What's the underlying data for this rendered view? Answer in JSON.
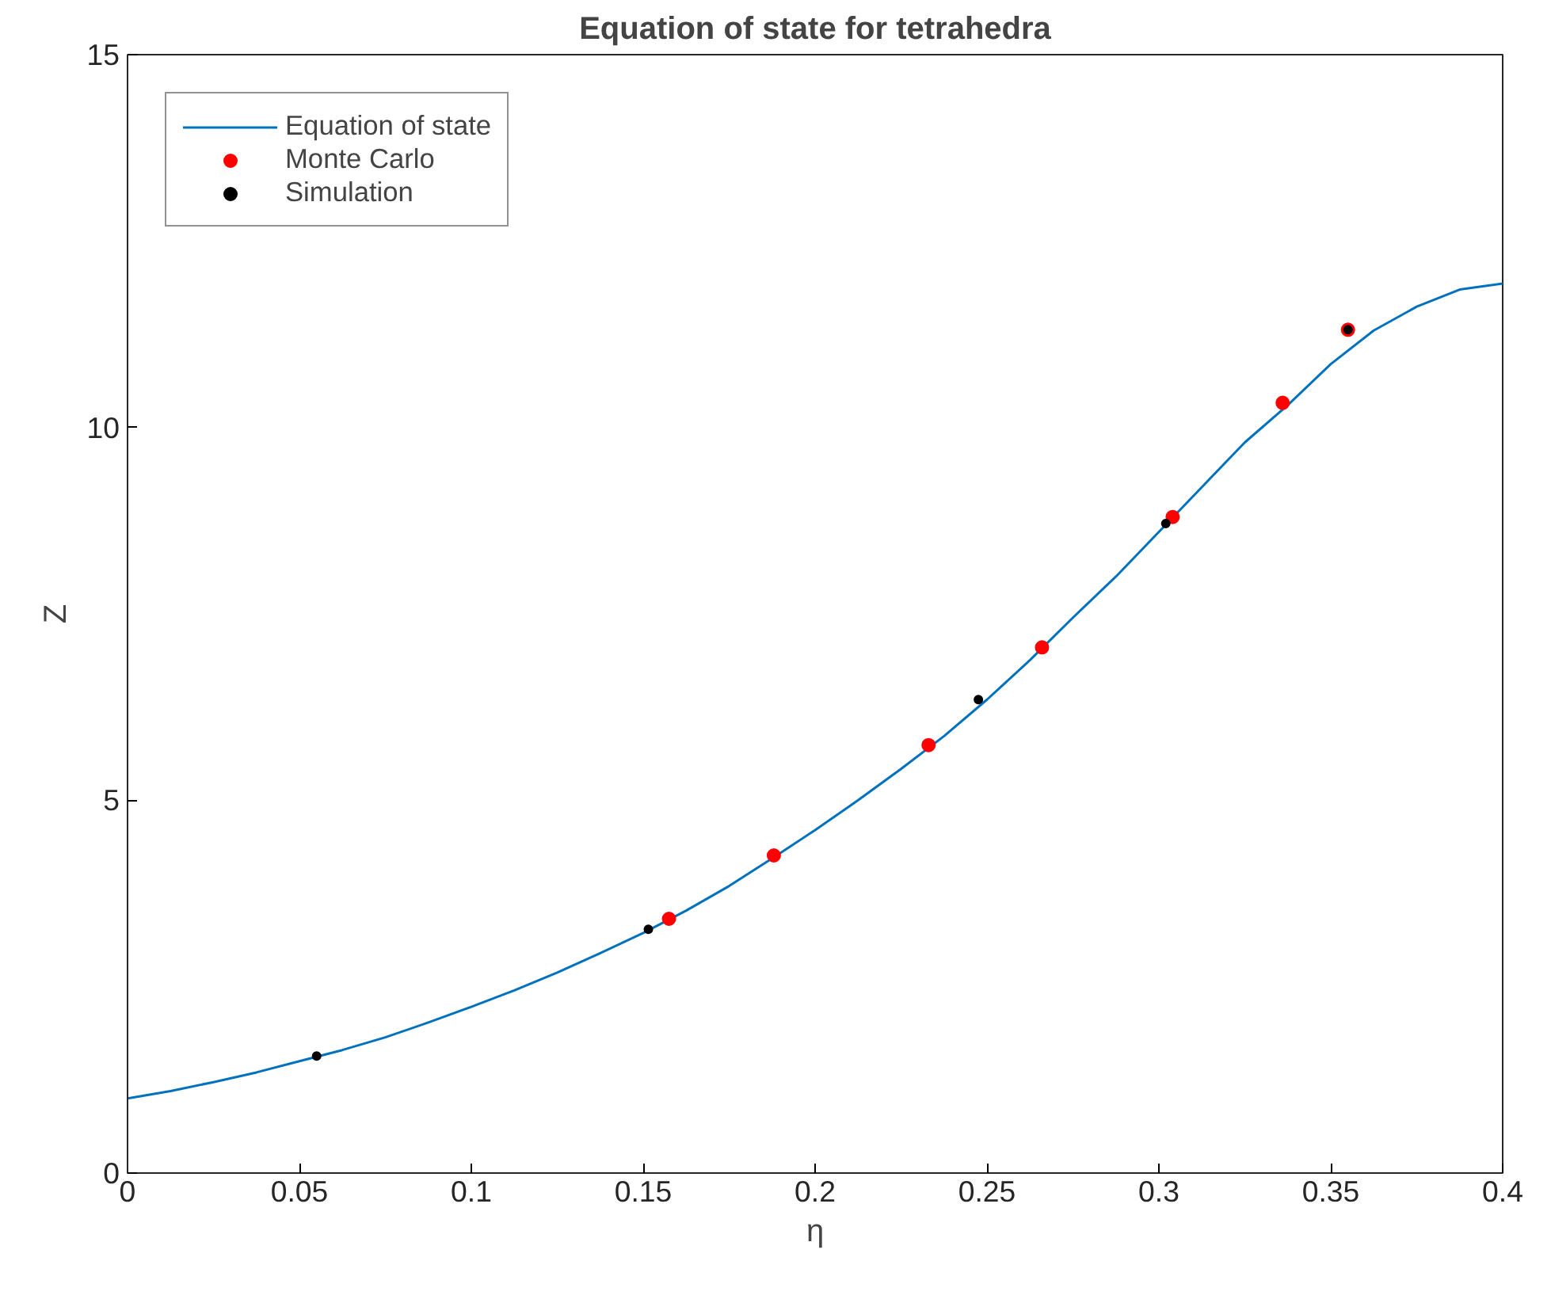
{
  "chart_data": {
    "type": "line",
    "title": "Equation of state for tetrahedra",
    "xlabel": "η",
    "ylabel": "Z",
    "xlim": [
      0,
      0.4
    ],
    "ylim": [
      0,
      15
    ],
    "xticks": [
      0,
      0.05,
      0.1,
      0.15,
      0.2,
      0.25,
      0.3,
      0.35,
      0.4
    ],
    "yticks": [
      0,
      5,
      10,
      15
    ],
    "grid": false,
    "legend": "top left",
    "series": [
      {
        "name": "Equation of state",
        "color": "#0072bd",
        "x": [
          0,
          0.0125,
          0.025,
          0.0375,
          0.05,
          0.0625,
          0.075,
          0.0875,
          0.1,
          0.1125,
          0.125,
          0.1375,
          0.15,
          0.1625,
          0.175,
          0.1875,
          0.2,
          0.2125,
          0.225,
          0.2375,
          0.25,
          0.2625,
          0.275,
          0.2875,
          0.3,
          0.3125,
          0.325,
          0.3375,
          0.35,
          0.3625,
          0.375,
          0.3875,
          0.4
        ],
        "values": [
          1.0,
          1.1,
          1.22,
          1.35,
          1.5,
          1.65,
          1.82,
          2.02,
          2.23,
          2.45,
          2.69,
          2.95,
          3.22,
          3.52,
          3.85,
          4.22,
          4.6,
          5.0,
          5.42,
          5.86,
          6.35,
          6.88,
          7.45,
          8.0,
          8.6,
          9.2,
          9.8,
          10.3,
          10.85,
          11.3,
          11.62,
          11.85,
          11.93
        ]
      },
      {
        "name": "Monte Carlo",
        "type": "scatter",
        "marker": "circle",
        "color": "#ff0000",
        "x": [
          0.1575,
          0.188,
          0.233,
          0.266,
          0.304,
          0.336,
          0.355
        ],
        "values": [
          3.41,
          4.26,
          5.74,
          7.05,
          8.8,
          10.33,
          11.31
        ]
      },
      {
        "name": "Simulation",
        "type": "scatter",
        "marker": "circle",
        "color": "#000000",
        "x": [
          0.055,
          0.1515,
          0.2475,
          0.302,
          0.355
        ],
        "values": [
          1.57,
          3.27,
          6.35,
          8.71,
          11.31
        ]
      }
    ]
  }
}
